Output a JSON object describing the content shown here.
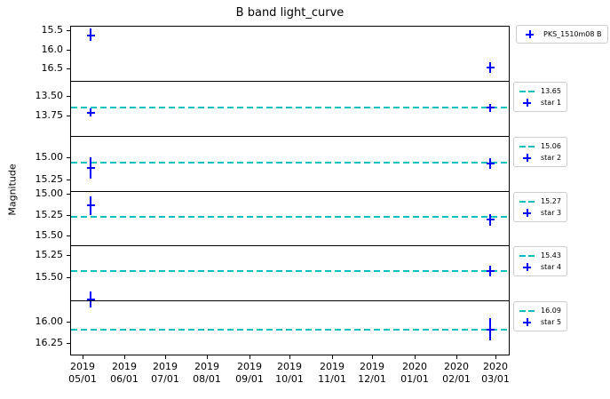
{
  "figure_title": "B band light_curve",
  "y_axis_label": "Magnitude",
  "colors": {
    "marker": "#0000ff",
    "reference_line": "#00bfbf",
    "spine": "#000000",
    "legend_border": "#cccccc",
    "background": "#ffffff"
  },
  "chart_data": {
    "type": "scatter",
    "title": "B band light_curve",
    "ylabel": "Magnitude",
    "grid": false,
    "legend_position": "outside-right, one legend box per panel",
    "x_axis": {
      "description": "shared date axis, days measured from 2019-05-01",
      "range_days": [
        -9.2,
        315.4
      ],
      "ticks": [
        {
          "year": "2019",
          "date": "05/01",
          "day": 0
        },
        {
          "year": "2019",
          "date": "06/01",
          "day": 31
        },
        {
          "year": "2019",
          "date": "07/01",
          "day": 61
        },
        {
          "year": "2019",
          "date": "08/01",
          "day": 92
        },
        {
          "year": "2019",
          "date": "09/01",
          "day": 123
        },
        {
          "year": "2019",
          "date": "10/01",
          "day": 153
        },
        {
          "year": "2019",
          "date": "11/01",
          "day": 184
        },
        {
          "year": "2019",
          "date": "12/01",
          "day": 214
        },
        {
          "year": "2020",
          "date": "01/01",
          "day": 245
        },
        {
          "year": "2020",
          "date": "02/01",
          "day": 276
        },
        {
          "year": "2020",
          "date": "03/01",
          "day": 305
        }
      ]
    },
    "panels": [
      {
        "name": "PKS_1510m08 B",
        "ylim": [
          15.37,
          16.84
        ],
        "yticks": [
          {
            "value": 15.5,
            "label": "15.5"
          },
          {
            "value": 16.0,
            "label": "16.0"
          },
          {
            "value": 16.5,
            "label": "16.5"
          }
        ],
        "reference_value": null,
        "points": [
          {
            "day": 6,
            "mag": 15.62,
            "err": 0.17
          },
          {
            "day": 301,
            "mag": 16.48,
            "err": 0.14
          }
        ],
        "legend_entries": [
          {
            "swatch": "plus",
            "label": "PKS_1510m08 B"
          }
        ]
      },
      {
        "name": "star 1",
        "ylim": [
          13.3,
          14.01
        ],
        "yticks": [
          {
            "value": 13.5,
            "label": "13.50"
          },
          {
            "value": 13.75,
            "label": "13.75"
          }
        ],
        "reference_value": 13.65,
        "points": [
          {
            "day": 6,
            "mag": 13.71,
            "err": 0.05
          },
          {
            "day": 301,
            "mag": 13.65,
            "err": 0.05
          }
        ],
        "legend_entries": [
          {
            "swatch": "dash",
            "label": "13.65"
          },
          {
            "swatch": "plus",
            "label": "star 1"
          }
        ]
      },
      {
        "name": "star 2",
        "ylim": [
          14.76,
          15.38
        ],
        "yticks": [
          {
            "value": 15.0,
            "label": "15.00"
          },
          {
            "value": 15.25,
            "label": "15.25"
          }
        ],
        "reference_value": 15.06,
        "points": [
          {
            "day": 6,
            "mag": 15.12,
            "err": 0.12
          },
          {
            "day": 301,
            "mag": 15.07,
            "err": 0.06
          }
        ],
        "legend_entries": [
          {
            "swatch": "dash",
            "label": "15.06"
          },
          {
            "swatch": "plus",
            "label": "star 2"
          }
        ]
      },
      {
        "name": "star 3",
        "ylim": [
          14.96,
          15.62
        ],
        "yticks": [
          {
            "value": 15.0,
            "label": "15.00"
          },
          {
            "value": 15.25,
            "label": "15.25"
          },
          {
            "value": 15.5,
            "label": "15.50"
          }
        ],
        "reference_value": 15.27,
        "points": [
          {
            "day": 6,
            "mag": 15.14,
            "err": 0.11
          },
          {
            "day": 301,
            "mag": 15.31,
            "err": 0.07
          }
        ],
        "legend_entries": [
          {
            "swatch": "dash",
            "label": "15.27"
          },
          {
            "swatch": "plus",
            "label": "star 3"
          }
        ]
      },
      {
        "name": "star 4",
        "ylim": [
          15.14,
          15.76
        ],
        "yticks": [
          {
            "value": 15.25,
            "label": "15.25"
          },
          {
            "value": 15.5,
            "label": "15.50"
          }
        ],
        "reference_value": 15.43,
        "points": [
          {
            "day": 6,
            "mag": 15.75,
            "err": 0.09
          },
          {
            "day": 301,
            "mag": 15.43,
            "err": 0.06
          }
        ],
        "legend_entries": [
          {
            "swatch": "dash",
            "label": "15.43"
          },
          {
            "swatch": "plus",
            "label": "star 4"
          }
        ]
      },
      {
        "name": "star 5",
        "ylim": [
          15.75,
          16.4
        ],
        "yticks": [
          {
            "value": 16.0,
            "label": "16.00"
          },
          {
            "value": 16.25,
            "label": "16.25"
          }
        ],
        "reference_value": 16.09,
        "points": [
          {
            "day": 301,
            "mag": 16.09,
            "err": 0.13
          }
        ],
        "legend_entries": [
          {
            "swatch": "dash",
            "label": "16.09"
          },
          {
            "swatch": "plus",
            "label": "star 5"
          }
        ]
      }
    ]
  }
}
